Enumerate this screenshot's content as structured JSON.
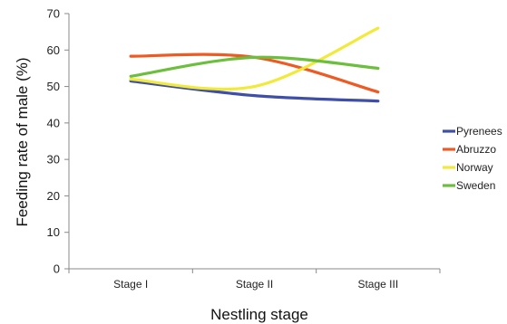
{
  "chart_data": {
    "type": "line",
    "categories": [
      "Stage I",
      "Stage II",
      "Stage III"
    ],
    "series": [
      {
        "name": "Pyrenees",
        "color": "#3f4fa8",
        "values": [
          51.5,
          47.5,
          46
        ]
      },
      {
        "name": "Abruzzo",
        "color": "#ee5a24",
        "values": [
          58.3,
          58,
          48.5
        ]
      },
      {
        "name": "Norway",
        "color": "#f1ea3a",
        "values": [
          52,
          50,
          66
        ]
      },
      {
        "name": "Sweden",
        "color": "#6cbf3c",
        "values": [
          52.8,
          58,
          55
        ]
      }
    ],
    "xlabel": "Nestling stage",
    "ylabel": "Feeding rate of male (%)",
    "ylim": [
      0,
      70
    ],
    "yticks": [
      0,
      10,
      20,
      30,
      40,
      50,
      60,
      70
    ],
    "grid": false,
    "legend": "right",
    "smooth": true
  }
}
